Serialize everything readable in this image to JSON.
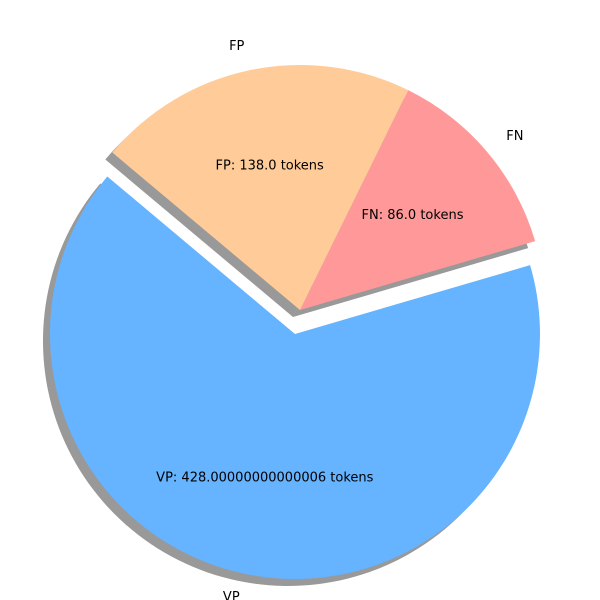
{
  "chart_data": {
    "type": "pie",
    "title": "",
    "categories": [
      "VP",
      "FN",
      "FP"
    ],
    "values": [
      428.00000000000006,
      86.0,
      138.0
    ],
    "slices": [
      {
        "name": "VP",
        "value": 428.00000000000006,
        "color": "#66b3ff",
        "explode": true,
        "label": "VP",
        "value_label": "VP: 428.00000000000006 tokens"
      },
      {
        "name": "FN",
        "value": 86.0,
        "color": "#ff9999",
        "explode": false,
        "label": "FN",
        "value_label": "FN: 86.0 tokens"
      },
      {
        "name": "FP",
        "value": 138.0,
        "color": "#ffcc99",
        "explode": false,
        "label": "FP",
        "value_label": "FP: 138.0 tokens"
      }
    ],
    "start_angle_deg": 140,
    "shadow": true,
    "legend": "none"
  }
}
